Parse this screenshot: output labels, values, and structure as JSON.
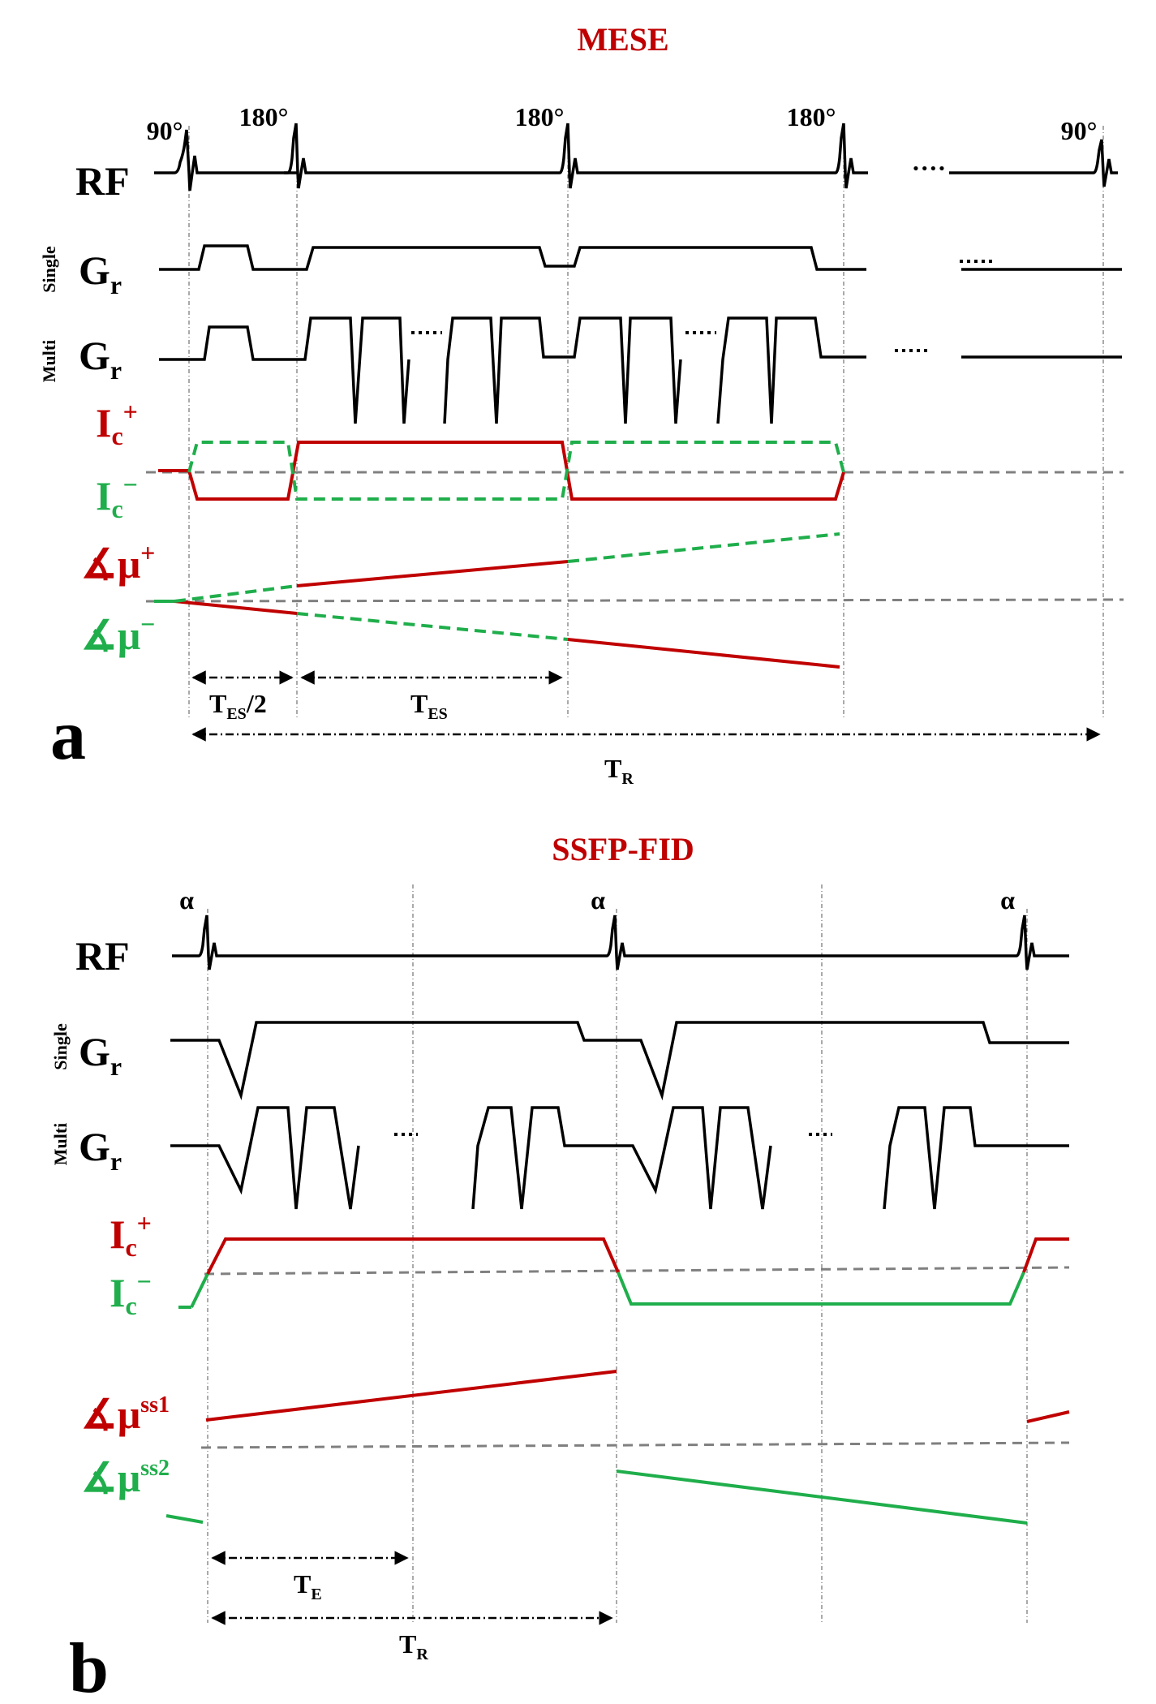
{
  "colors": {
    "black": "#000000",
    "red": "#c00000",
    "green": "#1fae4b",
    "gray": "#808080"
  },
  "panel_a": {
    "title": "MESE",
    "panel_label": "a",
    "rf_label": "RF",
    "gr_label": "G",
    "gr_sub": "r",
    "single_label": "Single",
    "multi_label": "Multi",
    "ic_plus": {
      "base": "I",
      "sub": "c",
      "sup": "+"
    },
    "ic_minus": {
      "base": "I",
      "sub": "c",
      "sup": "−"
    },
    "mu_plus": {
      "base": "∡μ",
      "sup": "+"
    },
    "mu_minus": {
      "base": "∡μ",
      "sup": "−"
    },
    "pulse_labels": [
      "90°",
      "180°",
      "180°",
      "180°",
      "90°"
    ],
    "ellipsis": "····",
    "tes_half": {
      "base": "T",
      "sub": "ES",
      "suffix": "/2"
    },
    "tes": {
      "base": "T",
      "sub": "ES"
    },
    "tr": {
      "base": "T",
      "sub": "R"
    }
  },
  "panel_b": {
    "title": "SSFP-FID",
    "panel_label": "b",
    "rf_label": "RF",
    "gr_label": "G",
    "gr_sub": "r",
    "single_label": "Single",
    "multi_label": "Multi",
    "ic_plus": {
      "base": "I",
      "sub": "c",
      "sup": "+"
    },
    "ic_minus": {
      "base": "I",
      "sub": "c",
      "sup": "−"
    },
    "mu_ss1": {
      "base": "∡μ",
      "sup": "ss1"
    },
    "mu_ss2": {
      "base": "∡μ",
      "sup": "ss2"
    },
    "pulse_labels": [
      "α",
      "α",
      "α"
    ],
    "ellipsis": "····",
    "te": {
      "base": "T",
      "sub": "E"
    },
    "tr": {
      "base": "T",
      "sub": "R"
    }
  }
}
